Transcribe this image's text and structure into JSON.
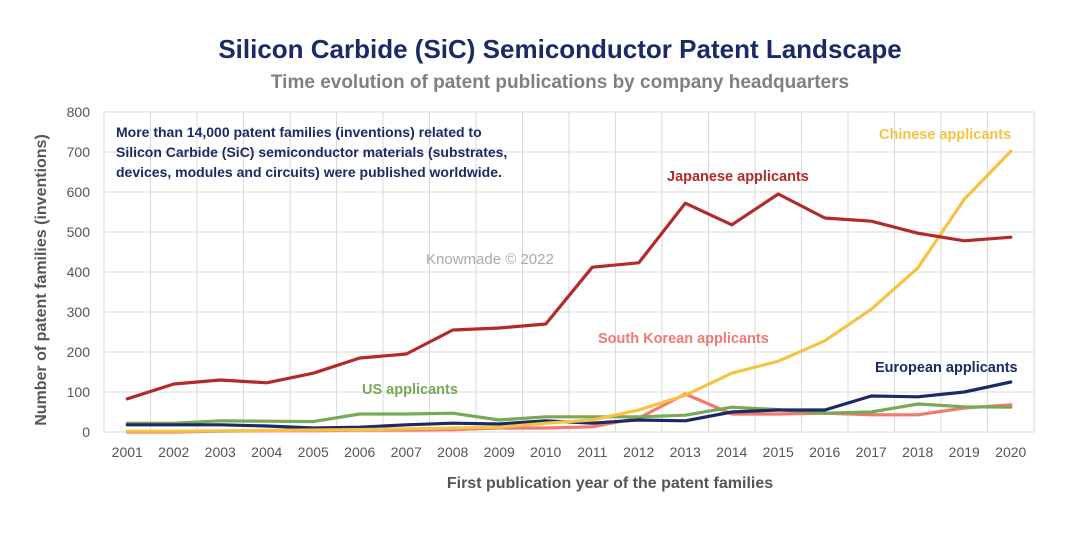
{
  "header": {
    "title": "Silicon Carbide (SiC) Semiconductor Patent Landscape",
    "subtitle": "Time evolution of patent publications by company headquarters"
  },
  "annotation": {
    "lines": [
      "More than 14,000 patent families (inventions) related to",
      "Silicon Carbide (SiC) semiconductor materials (substrates,",
      "devices, modules and circuits) were published worldwide."
    ]
  },
  "watermark": "Knowmade © 2022",
  "chart_data": {
    "type": "line",
    "title": "Silicon Carbide (SiC) Semiconductor Patent Landscape",
    "subtitle": "Time evolution of patent publications by company headquarters",
    "xlabel": "First publication year of the patent families",
    "ylabel": "Number of patent families (inventions)",
    "ylim": [
      0,
      800
    ],
    "yticks": [
      0,
      100,
      200,
      300,
      400,
      500,
      600,
      700,
      800
    ],
    "grid": true,
    "x": [
      "2001",
      "2002",
      "2003",
      "2004",
      "2005",
      "2006",
      "2007",
      "2008",
      "2009",
      "2010",
      "2011",
      "2012",
      "2013",
      "2014",
      "2015",
      "2016",
      "2017",
      "2018",
      "2019",
      "2020"
    ],
    "series": [
      {
        "name": "Japanese applicants",
        "color": "#b22a2a",
        "values": [
          83,
          120,
          130,
          123,
          147,
          185,
          195,
          255,
          260,
          270,
          412,
          423,
          572,
          518,
          595,
          535,
          527,
          497,
          478,
          487
        ]
      },
      {
        "name": "Chinese applicants",
        "color": "#f6c243",
        "values": [
          2,
          2,
          3,
          4,
          5,
          6,
          8,
          10,
          12,
          22,
          30,
          55,
          92,
          147,
          177,
          228,
          307,
          410,
          582,
          702
        ]
      },
      {
        "name": "US applicants",
        "color": "#77a956",
        "values": [
          22,
          22,
          28,
          27,
          26,
          45,
          45,
          47,
          30,
          38,
          38,
          38,
          42,
          62,
          56,
          47,
          50,
          70,
          63,
          62
        ]
      },
      {
        "name": "European applicants",
        "color": "#1b2a66",
        "values": [
          18,
          18,
          18,
          15,
          10,
          12,
          18,
          22,
          20,
          28,
          22,
          30,
          28,
          50,
          55,
          55,
          90,
          88,
          100,
          125
        ]
      },
      {
        "name": "South Korean applicants",
        "color": "#f07a6f",
        "values": [
          0,
          0,
          2,
          3,
          3,
          5,
          5,
          6,
          10,
          10,
          13,
          35,
          95,
          45,
          45,
          47,
          43,
          43,
          60,
          68
        ]
      }
    ],
    "series_labels": [
      "Japanese applicants",
      "Chinese applicants",
      "US applicants",
      "European applicants",
      "South Korean applicants"
    ]
  }
}
